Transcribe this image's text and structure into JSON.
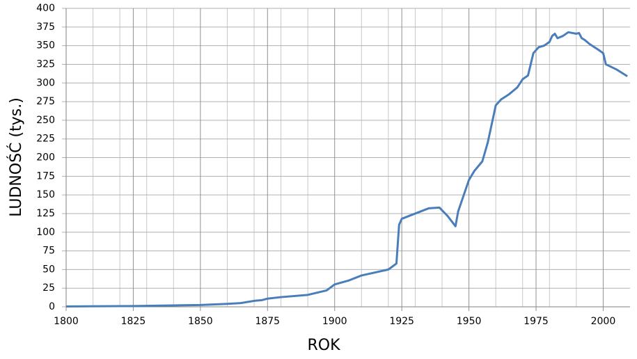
{
  "chart_data": {
    "type": "line",
    "x_label": "ROK",
    "y_label": "LUDNOŚĆ (tys.)",
    "x": [
      1800,
      1825,
      1850,
      1860,
      1865,
      1870,
      1873,
      1875,
      1880,
      1890,
      1897,
      1900,
      1905,
      1910,
      1915,
      1920,
      1923,
      1924,
      1925,
      1930,
      1935,
      1939,
      1942,
      1945,
      1946,
      1950,
      1952,
      1955,
      1957,
      1960,
      1962,
      1965,
      1968,
      1970,
      1972,
      1974,
      1976,
      1978,
      1980,
      1981,
      1982,
      1983,
      1985,
      1987,
      1990,
      1991,
      1992,
      1993,
      1995,
      1998,
      2000,
      2001,
      2005,
      2009
    ],
    "series": [
      {
        "name": "LUDNOŚĆ",
        "color": "#4a7ebb",
        "values": [
          0.5,
          1,
          2.5,
          4,
          5,
          8,
          9,
          11,
          13,
          16,
          22,
          30,
          35,
          42,
          46,
          50,
          58,
          110,
          118,
          125,
          132,
          133,
          122,
          108,
          128,
          170,
          182,
          195,
          220,
          270,
          278,
          285,
          294,
          305,
          310,
          340,
          348,
          350,
          355,
          363,
          366,
          360,
          363,
          368,
          366,
          367,
          360,
          358,
          352,
          345,
          340,
          325,
          318,
          309
        ]
      }
    ],
    "xlim": [
      1800,
      2010
    ],
    "ylim": [
      0,
      400
    ],
    "xticks": [
      1800,
      1825,
      1850,
      1875,
      1900,
      1925,
      1950,
      1975,
      2000
    ],
    "x_minor_grid": [
      1810,
      1820,
      1830,
      1840,
      1860,
      1870,
      1880,
      1890,
      1910,
      1920,
      1930,
      1940,
      1960,
      1970,
      1980,
      1990
    ],
    "yticks": [
      0,
      25,
      50,
      75,
      100,
      125,
      150,
      175,
      200,
      225,
      250,
      275,
      300,
      325,
      350,
      375,
      400
    ],
    "grid": true
  }
}
